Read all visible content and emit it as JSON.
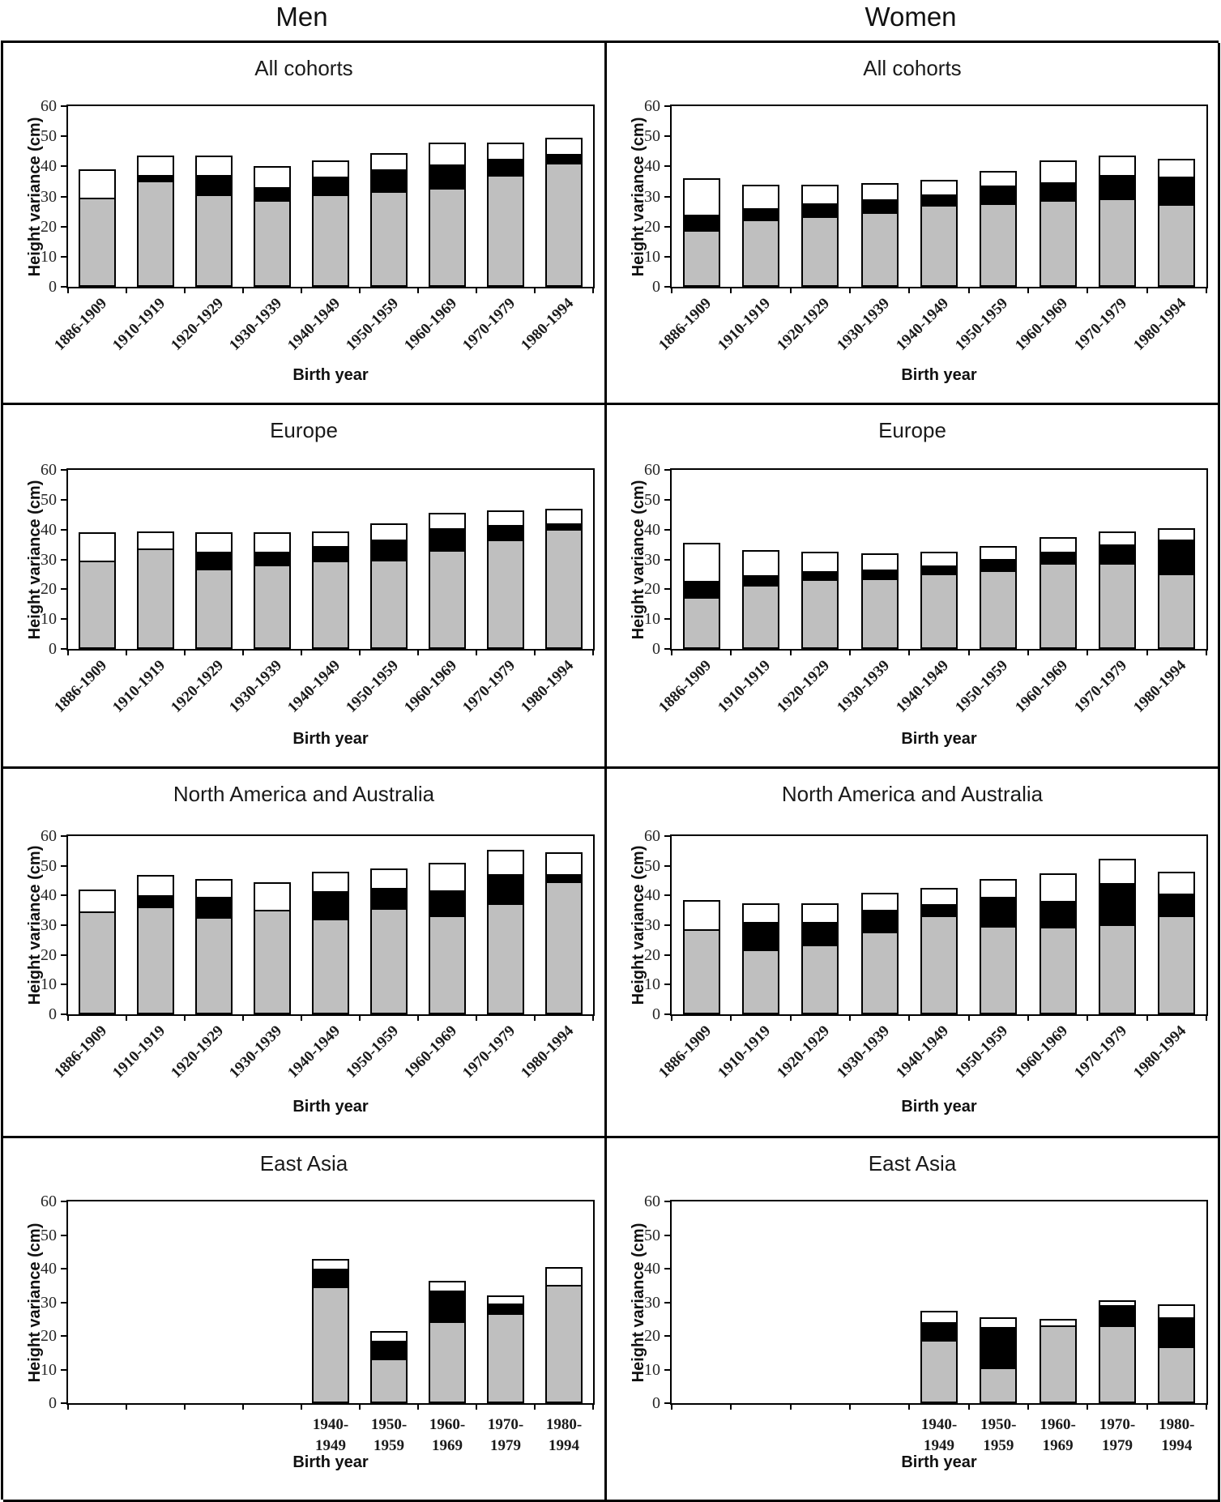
{
  "header": {
    "columns": [
      "Men",
      "Women"
    ]
  },
  "chart_data": [
    {
      "type": "bar",
      "stacked": true,
      "title": "All cohorts",
      "column": "Men",
      "xlabel": "Birth year",
      "ylabel": "Height variance (cm)",
      "ylim": [
        0,
        60
      ],
      "yticks": [
        0,
        10,
        20,
        30,
        40,
        50,
        60
      ],
      "grid": false,
      "legend": "none",
      "label_style": "rotated",
      "slots": 9,
      "start_slot": 0,
      "categories": [
        "1886-1909",
        "1910-1919",
        "1920-1929",
        "1930-1939",
        "1940-1949",
        "1950-1959",
        "1960-1969",
        "1970-1979",
        "1980-1994"
      ],
      "series": [
        {
          "name": "gray-segment",
          "color": "#BFBFBF",
          "values": [
            30,
            35.5,
            31,
            29,
            31,
            32,
            33,
            37.5,
            41.5
          ]
        },
        {
          "name": "black-segment",
          "color": "#000000",
          "values": [
            0,
            2,
            6.5,
            4.5,
            6,
            7.5,
            8,
            5.5,
            3
          ]
        },
        {
          "name": "white-segment",
          "color": "#FFFFFF",
          "values": [
            9,
            6,
            6,
            6.5,
            5,
            5,
            7,
            5,
            5
          ]
        }
      ]
    },
    {
      "type": "bar",
      "stacked": true,
      "title": "All cohorts",
      "column": "Women",
      "xlabel": "Birth year",
      "ylabel": "Height variance (cm)",
      "ylim": [
        0,
        60
      ],
      "yticks": [
        0,
        10,
        20,
        30,
        40,
        50,
        60
      ],
      "grid": false,
      "legend": "none",
      "label_style": "rotated",
      "slots": 9,
      "start_slot": 0,
      "categories": [
        "1886-1909",
        "1910-1919",
        "1920-1929",
        "1930-1939",
        "1940-1949",
        "1950-1959",
        "1960-1969",
        "1970-1979",
        "1980-1994"
      ],
      "series": [
        {
          "name": "gray-segment",
          "color": "#BFBFBF",
          "values": [
            19,
            22.5,
            23.5,
            25,
            27.5,
            28,
            29,
            29.5,
            27.5
          ]
        },
        {
          "name": "black-segment",
          "color": "#000000",
          "values": [
            5,
            4,
            4.5,
            4.5,
            3.5,
            6,
            6,
            8,
            9.5
          ]
        },
        {
          "name": "white-segment",
          "color": "#FFFFFF",
          "values": [
            12,
            7.5,
            6,
            5,
            4.5,
            4.5,
            7,
            6,
            5.5
          ]
        }
      ]
    },
    {
      "type": "bar",
      "stacked": true,
      "title": "Europe",
      "column": "Men",
      "xlabel": "Birth year",
      "ylabel": "Height variance (cm)",
      "ylim": [
        0,
        60
      ],
      "yticks": [
        0,
        10,
        20,
        30,
        40,
        50,
        60
      ],
      "grid": false,
      "legend": "none",
      "label_style": "rotated",
      "slots": 9,
      "start_slot": 0,
      "categories": [
        "1886-1909",
        "1910-1919",
        "1920-1929",
        "1930-1939",
        "1940-1949",
        "1950-1959",
        "1960-1969",
        "1970-1979",
        "1980-1994"
      ],
      "series": [
        {
          "name": "gray-segment",
          "color": "#BFBFBF",
          "values": [
            30,
            34,
            27,
            28.5,
            30,
            30,
            33.5,
            37,
            40.5
          ]
        },
        {
          "name": "black-segment",
          "color": "#000000",
          "values": [
            0,
            0,
            6,
            4.5,
            5,
            7,
            7.5,
            5,
            2
          ]
        },
        {
          "name": "white-segment",
          "color": "#FFFFFF",
          "values": [
            9,
            5.5,
            6,
            6,
            4.5,
            5,
            4.5,
            4.5,
            4.5
          ]
        }
      ]
    },
    {
      "type": "bar",
      "stacked": true,
      "title": "Europe",
      "column": "Women",
      "xlabel": "Birth year",
      "ylabel": "Height variance (cm)",
      "ylim": [
        0,
        60
      ],
      "yticks": [
        0,
        10,
        20,
        30,
        40,
        50,
        60
      ],
      "grid": false,
      "legend": "none",
      "label_style": "rotated",
      "slots": 9,
      "start_slot": 0,
      "categories": [
        "1886-1909",
        "1910-1919",
        "1920-1929",
        "1930-1939",
        "1940-1949",
        "1950-1959",
        "1960-1969",
        "1970-1979",
        "1980-1994"
      ],
      "series": [
        {
          "name": "gray-segment",
          "color": "#BFBFBF",
          "values": [
            17.5,
            21.5,
            23.5,
            24,
            25.5,
            26.5,
            29,
            29,
            25.5
          ]
        },
        {
          "name": "black-segment",
          "color": "#000000",
          "values": [
            5.5,
            3.5,
            3,
            3,
            3,
            4,
            4,
            6.5,
            11.5
          ]
        },
        {
          "name": "white-segment",
          "color": "#FFFFFF",
          "values": [
            12.5,
            8,
            6,
            5,
            4,
            4,
            4.5,
            4,
            3.5
          ]
        }
      ]
    },
    {
      "type": "bar",
      "stacked": true,
      "title": "North America and Australia",
      "column": "Men",
      "xlabel": "Birth year",
      "ylabel": "Height variance (cm)",
      "ylim": [
        0,
        60
      ],
      "yticks": [
        0,
        10,
        20,
        30,
        40,
        50,
        60
      ],
      "grid": false,
      "legend": "none",
      "label_style": "rotated",
      "slots": 9,
      "start_slot": 0,
      "categories": [
        "1886-1909",
        "1910-1919",
        "1920-1929",
        "1930-1939",
        "1940-1949",
        "1950-1959",
        "1960-1969",
        "1970-1979",
        "1980-1994"
      ],
      "series": [
        {
          "name": "gray-segment",
          "color": "#BFBFBF",
          "values": [
            35,
            36.5,
            33,
            35.5,
            32.5,
            36,
            33.5,
            37.5,
            45
          ]
        },
        {
          "name": "black-segment",
          "color": "#000000",
          "values": [
            0,
            4,
            7,
            0,
            9.5,
            7,
            8.5,
            10,
            2.5
          ]
        },
        {
          "name": "white-segment",
          "color": "#FFFFFF",
          "values": [
            7,
            6.5,
            5.5,
            9,
            6,
            6,
            9,
            8,
            7
          ]
        }
      ]
    },
    {
      "type": "bar",
      "stacked": true,
      "title": "North America and Australia",
      "column": "Women",
      "xlabel": "Birth year",
      "ylabel": "Height variance (cm)",
      "ylim": [
        0,
        60
      ],
      "yticks": [
        0,
        10,
        20,
        30,
        40,
        50,
        60
      ],
      "grid": false,
      "legend": "none",
      "label_style": "rotated",
      "slots": 9,
      "start_slot": 0,
      "categories": [
        "1886-1909",
        "1910-1919",
        "1920-1929",
        "1930-1939",
        "1940-1949",
        "1950-1959",
        "1960-1969",
        "1970-1979",
        "1980-1994"
      ],
      "series": [
        {
          "name": "gray-segment",
          "color": "#BFBFBF",
          "values": [
            29,
            22,
            23.5,
            28,
            33.5,
            30,
            29.5,
            30.5,
            33.5
          ]
        },
        {
          "name": "black-segment",
          "color": "#000000",
          "values": [
            0,
            9.5,
            8,
            7.5,
            4,
            10,
            9,
            14,
            7.5
          ]
        },
        {
          "name": "white-segment",
          "color": "#FFFFFF",
          "values": [
            9.5,
            6,
            6,
            5.5,
            5,
            5.5,
            9,
            8,
            7
          ]
        }
      ]
    },
    {
      "type": "bar",
      "stacked": true,
      "title": "East Asia",
      "column": "Men",
      "xlabel": "Birth year",
      "ylabel": "Height variance (cm)",
      "ylim": [
        0,
        60
      ],
      "yticks": [
        0,
        10,
        20,
        30,
        40,
        50,
        60
      ],
      "grid": false,
      "legend": "none",
      "label_style": "two-line",
      "slots": 9,
      "start_slot": 4,
      "categories": [
        [
          "1940-",
          "1949"
        ],
        [
          "1950-",
          "1959"
        ],
        [
          "1960-",
          "1969"
        ],
        [
          "1970-",
          "1979"
        ],
        [
          "1980-",
          "1994"
        ]
      ],
      "series": [
        {
          "name": "gray-segment",
          "color": "#BFBFBF",
          "values": [
            35,
            13.5,
            24.5,
            27,
            35.5
          ]
        },
        {
          "name": "black-segment",
          "color": "#000000",
          "values": [
            5.5,
            5.5,
            9.5,
            3,
            0
          ]
        },
        {
          "name": "white-segment",
          "color": "#FFFFFF",
          "values": [
            2.5,
            2.5,
            2.5,
            2,
            5
          ]
        }
      ]
    },
    {
      "type": "bar",
      "stacked": true,
      "title": "East Asia",
      "column": "Women",
      "xlabel": "Birth year",
      "ylabel": "Height variance (cm)",
      "ylim": [
        0,
        60
      ],
      "yticks": [
        0,
        10,
        20,
        30,
        40,
        50,
        60
      ],
      "grid": false,
      "legend": "none",
      "label_style": "two-line",
      "slots": 9,
      "start_slot": 4,
      "categories": [
        [
          "1940-",
          "1949"
        ],
        [
          "1950-",
          "1959"
        ],
        [
          "1960-",
          "1969"
        ],
        [
          "1970-",
          "1979"
        ],
        [
          "1980-",
          "1994"
        ]
      ],
      "series": [
        {
          "name": "gray-segment",
          "color": "#BFBFBF",
          "values": [
            19,
            10.5,
            23.5,
            23.5,
            17
          ]
        },
        {
          "name": "black-segment",
          "color": "#000000",
          "values": [
            5.5,
            12.5,
            0,
            6,
            9
          ]
        },
        {
          "name": "white-segment",
          "color": "#FFFFFF",
          "values": [
            3,
            2.5,
            1.5,
            1,
            3.5
          ]
        }
      ]
    }
  ]
}
